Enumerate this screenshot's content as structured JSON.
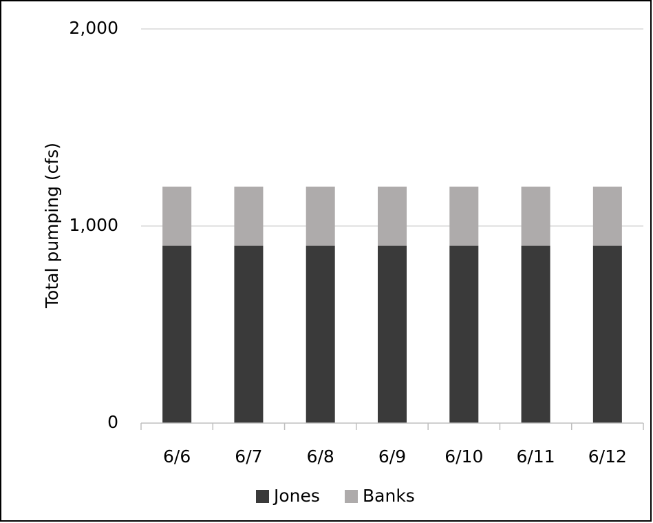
{
  "chart_data": {
    "type": "bar",
    "stacked": true,
    "title": "",
    "xlabel": "",
    "ylabel": "Total pumping (cfs)",
    "ylim": [
      0,
      2000
    ],
    "yticks": [
      0,
      1000,
      2000
    ],
    "ytick_labels": [
      "0",
      "1,000",
      "2,000"
    ],
    "categories": [
      "6/6",
      "6/7",
      "6/8",
      "6/9",
      "6/10",
      "6/11",
      "6/12"
    ],
    "series": [
      {
        "name": "Jones",
        "color": "#3a3a3a",
        "values": [
          900,
          900,
          900,
          900,
          900,
          900,
          900
        ]
      },
      {
        "name": "Banks",
        "color": "#aeabab",
        "values": [
          300,
          300,
          300,
          300,
          300,
          300,
          300
        ]
      }
    ],
    "grid": true,
    "legend_position": "bottom"
  }
}
